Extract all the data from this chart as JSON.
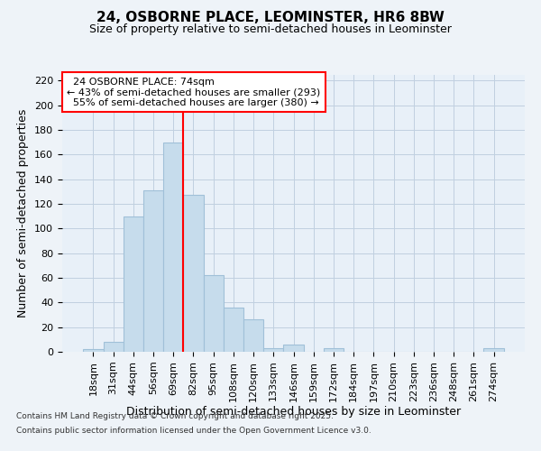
{
  "title": "24, OSBORNE PLACE, LEOMINSTER, HR6 8BW",
  "subtitle": "Size of property relative to semi-detached houses in Leominster",
  "xlabel": "Distribution of semi-detached houses by size in Leominster",
  "ylabel": "Number of semi-detached properties",
  "bar_labels": [
    "18sqm",
    "31sqm",
    "44sqm",
    "56sqm",
    "69sqm",
    "82sqm",
    "95sqm",
    "108sqm",
    "120sqm",
    "133sqm",
    "146sqm",
    "159sqm",
    "172sqm",
    "184sqm",
    "197sqm",
    "210sqm",
    "223sqm",
    "236sqm",
    "248sqm",
    "261sqm",
    "274sqm"
  ],
  "bar_values": [
    2,
    8,
    110,
    131,
    170,
    127,
    62,
    36,
    26,
    3,
    6,
    0,
    3,
    0,
    0,
    0,
    0,
    0,
    0,
    0,
    3
  ],
  "bar_color": "#c6dcec",
  "bar_edge_color": "#a0c0d8",
  "property_label": "24 OSBORNE PLACE: 74sqm",
  "pct_smaller": 43,
  "count_smaller": 293,
  "pct_larger": 55,
  "count_larger": 380,
  "red_line_bin_index": 4,
  "ylim": [
    0,
    225
  ],
  "yticks": [
    0,
    20,
    40,
    60,
    80,
    100,
    120,
    140,
    160,
    180,
    200,
    220
  ],
  "footnote1": "Contains HM Land Registry data © Crown copyright and database right 2025.",
  "footnote2": "Contains public sector information licensed under the Open Government Licence v3.0.",
  "background_color": "#eef3f8",
  "plot_background_color": "#e8f0f8",
  "grid_color": "#c0d0e0",
  "title_fontsize": 11,
  "subtitle_fontsize": 9,
  "tick_fontsize": 8,
  "label_fontsize": 9,
  "annotation_fontsize": 8
}
